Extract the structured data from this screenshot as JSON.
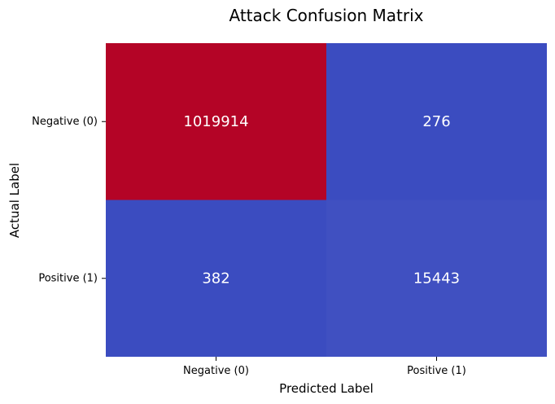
{
  "chart_data": {
    "type": "heatmap",
    "title": "Attack Confusion Matrix",
    "xlabel": "Predicted Label",
    "ylabel": "Actual Label",
    "x_categories": [
      "Negative (0)",
      "Positive (1)"
    ],
    "y_categories": [
      "Negative (0)",
      "Positive (1)"
    ],
    "values": [
      [
        1019914,
        276
      ],
      [
        382,
        15443
      ]
    ],
    "colormap": "coolwarm",
    "colors": {
      "high": "#b40426",
      "low": "#3b4cc0",
      "cell_text": "#ffffff"
    },
    "colorbar": false,
    "grid": false
  }
}
